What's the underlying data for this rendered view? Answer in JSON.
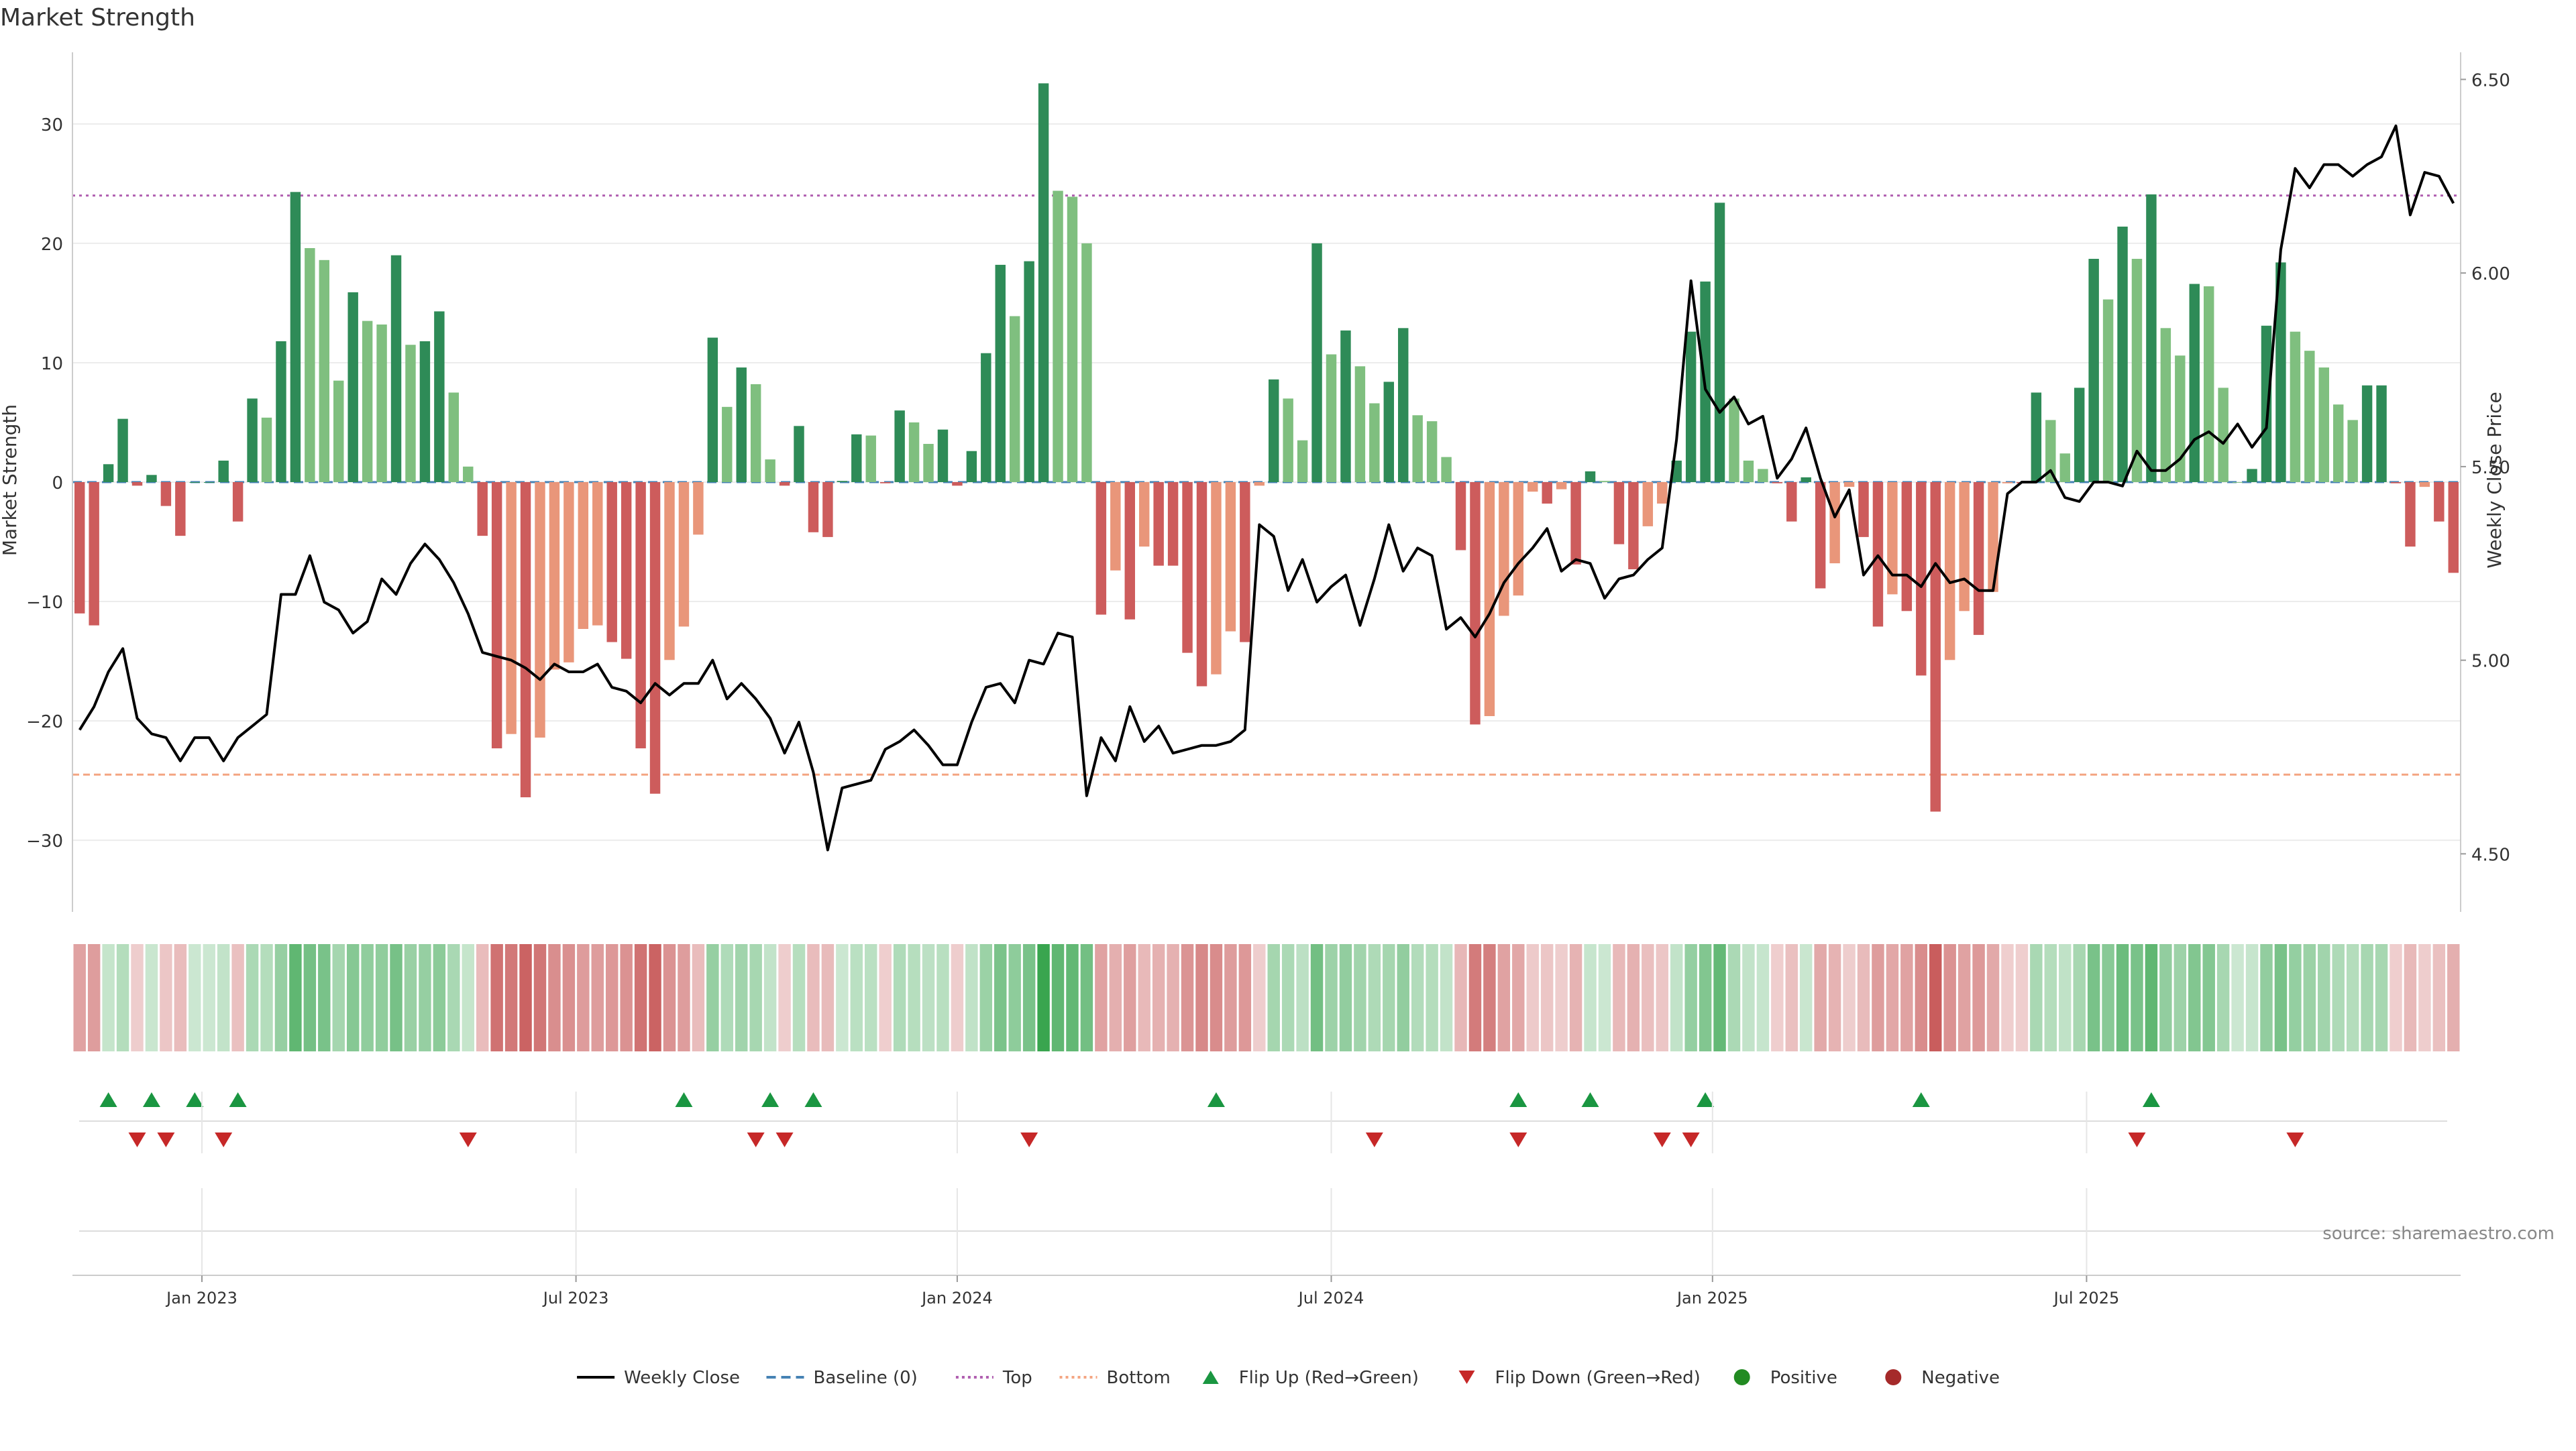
{
  "title": "Market Strength",
  "source": "source: sharemaestro.com",
  "colors": {
    "strong_green": "#2e8b57",
    "light_green": "#7fbf7f",
    "strong_red": "#cd5c5c",
    "light_red": "#e9967a",
    "price_line": "#000000",
    "baseline": "#4682b4",
    "top": "#b05fb0",
    "bottom": "#f4a582",
    "flip_up": "#1a9641",
    "flip_down": "#c62828",
    "positive": "#228b22",
    "negative": "#a52a2a"
  },
  "legend": {
    "weekly_close": "Weekly Close",
    "baseline": "Baseline (0)",
    "top": "Top",
    "bottom": "Bottom",
    "flip_up": "Flip Up (Red→Green)",
    "flip_down": "Flip Down (Green→Red)",
    "positive": "Positive",
    "negative": "Negative"
  },
  "chart_data": {
    "type": "bar",
    "title": "Market Strength",
    "ylabel": "Market Strength",
    "y2label": "Weekly Close Price",
    "ylim": [
      -36,
      36
    ],
    "y2lim": [
      4.35,
      6.57
    ],
    "yticks": [
      -30,
      -20,
      -10,
      0,
      10,
      20,
      30
    ],
    "yticklabels": [
      "−30",
      "−20",
      "−10",
      "0",
      "10",
      "20",
      "30"
    ],
    "y2ticks": [
      4.5,
      5.0,
      5.5,
      6.0,
      6.5
    ],
    "y2ticklabels": [
      "4.50",
      "5.00",
      "5.50",
      "6.00",
      "6.50"
    ],
    "xticks": [
      {
        "week": 8.5,
        "label": "Jan 2023"
      },
      {
        "week": 34.5,
        "label": "Jul 2023"
      },
      {
        "week": 61,
        "label": "Jan 2024"
      },
      {
        "week": 87,
        "label": "Jul 2024"
      },
      {
        "week": 113.5,
        "label": "Jan 2025"
      },
      {
        "week": 139.5,
        "label": "Jul 2025"
      }
    ],
    "top_level": 24,
    "bottom_level": -24.5,
    "strength": [
      -11,
      -12,
      1.5,
      5.3,
      -0.3,
      0.6,
      -2,
      -4.5,
      0,
      0,
      1.8,
      -3.3,
      7,
      5.4,
      11.8,
      24.3,
      19.6,
      18.6,
      8.5,
      15.9,
      13.5,
      13.2,
      19,
      11.5,
      11.8,
      14.3,
      7.5,
      1.3,
      -4.5,
      -22.3,
      -21.1,
      -26.4,
      -21.4,
      -15.7,
      -15.1,
      -12.3,
      -12,
      -13.4,
      -14.8,
      -22.3,
      -26.1,
      -14.9,
      -12.1,
      -4.4,
      12.1,
      6.3,
      9.6,
      8.2,
      1.9,
      -0.3,
      4.7,
      -4.2,
      -4.6,
      0.1,
      4,
      3.9,
      -0.1,
      6,
      5,
      3.2,
      4.4,
      -0.3,
      2.6,
      10.8,
      18.2,
      13.9,
      18.5,
      33.4,
      24.4,
      23.9,
      20,
      -11.1,
      -7.4,
      -11.5,
      -5.4,
      -7,
      -7,
      -14.3,
      -17.1,
      -16.1,
      -12.5,
      -13.4,
      -0.3,
      8.6,
      7,
      3.5,
      20,
      10.7,
      12.7,
      9.7,
      6.6,
      8.4,
      12.9,
      5.6,
      5.1,
      2.1,
      -5.7,
      -20.3,
      -19.6,
      -11.2,
      -9.5,
      -0.8,
      -1.8,
      -0.6,
      -6.9,
      0.9,
      0.1,
      -5.2,
      -7.3,
      -3.7,
      -1.8,
      1.8,
      12.6,
      16.8,
      23.4,
      7,
      1.8,
      1.1,
      -0.1,
      -3.3,
      0.4,
      -8.9,
      -6.8,
      -0.4,
      -4.6,
      -12.1,
      -9.4,
      -10.8,
      -16.2,
      -27.6,
      -14.9,
      -10.8,
      -12.8,
      -9.2,
      -0.1,
      -0.1,
      7.5,
      5.2,
      2.4,
      7.9,
      18.7,
      15.3,
      21.4,
      18.7,
      24.1,
      12.9,
      10.6,
      16.6,
      16.4,
      7.9,
      0,
      1.1,
      13.1,
      18.4,
      12.6,
      11,
      9.6,
      6.5,
      5.2,
      8.1,
      8.1,
      -0.1,
      -5.4,
      -0.4,
      -3.3,
      -7.6
    ],
    "price": [
      4.82,
      4.88,
      4.97,
      5.03,
      4.85,
      4.81,
      4.8,
      4.74,
      4.8,
      4.8,
      4.74,
      4.8,
      4.83,
      4.86,
      5.17,
      5.17,
      5.27,
      5.15,
      5.13,
      5.07,
      5.1,
      5.21,
      5.17,
      5.25,
      5.3,
      5.26,
      5.2,
      5.12,
      5.02,
      5.01,
      5,
      4.98,
      4.95,
      4.99,
      4.97,
      4.97,
      4.99,
      4.93,
      4.92,
      4.89,
      4.94,
      4.91,
      4.94,
      4.94,
      5,
      4.9,
      4.94,
      4.9,
      4.85,
      4.76,
      4.84,
      4.71,
      4.51,
      4.67,
      4.68,
      4.69,
      4.77,
      4.79,
      4.82,
      4.78,
      4.73,
      4.73,
      4.84,
      4.93,
      4.94,
      4.89,
      5,
      4.99,
      5.07,
      5.06,
      4.65,
      4.8,
      4.74,
      4.88,
      4.79,
      4.83,
      4.76,
      4.77,
      4.78,
      4.78,
      4.79,
      4.82,
      5.35,
      5.32,
      5.18,
      5.26,
      5.15,
      5.19,
      5.22,
      5.09,
      5.21,
      5.35,
      5.23,
      5.29,
      5.27,
      5.08,
      5.11,
      5.06,
      5.12,
      5.2,
      5.25,
      5.29,
      5.34,
      5.23,
      5.26,
      5.25,
      5.16,
      5.21,
      5.22,
      5.26,
      5.29,
      5.57,
      5.98,
      5.7,
      5.64,
      5.68,
      5.61,
      5.63,
      5.47,
      5.52,
      5.6,
      5.47,
      5.37,
      5.44,
      5.22,
      5.27,
      5.22,
      5.22,
      5.19,
      5.25,
      5.2,
      5.21,
      5.18,
      5.18,
      5.43,
      5.46,
      5.46,
      5.49,
      5.42,
      5.41,
      5.46,
      5.46,
      5.45,
      5.54,
      5.49,
      5.49,
      5.52,
      5.57,
      5.59,
      5.56,
      5.61,
      5.55,
      5.6,
      6.06,
      6.27,
      6.22,
      6.28,
      6.28,
      6.25,
      6.28,
      6.3,
      6.38,
      6.15,
      6.26,
      6.25,
      6.18
    ],
    "flip_up_weeks": [
      2,
      5,
      8,
      11,
      42,
      48,
      51,
      79,
      100,
      105,
      113,
      128,
      144
    ],
    "flip_down_weeks": [
      4,
      6,
      10,
      27,
      47,
      49,
      66,
      90,
      100,
      110,
      112,
      143,
      154
    ]
  }
}
